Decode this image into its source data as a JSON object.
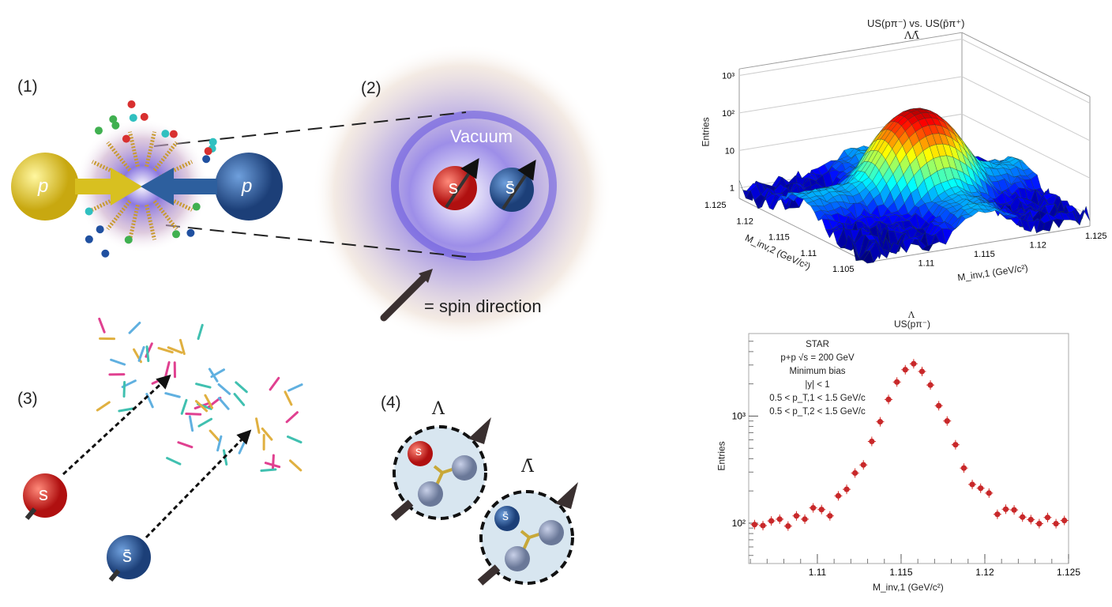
{
  "panels": {
    "p1": {
      "label": "(1)",
      "proton_left": "p",
      "proton_right": "p"
    },
    "p2": {
      "label": "(2)",
      "vacuum": "Vacuum",
      "quark": "s",
      "antiquark": "s̄",
      "legend": "= spin direction"
    },
    "p3": {
      "label": "(3)",
      "quark": "s",
      "antiquark": "s̄"
    },
    "p4": {
      "label": "(4)",
      "lambda": "Λ",
      "antilambda": "Λ̄",
      "quark": "s",
      "antiquark": "s̄"
    }
  },
  "colors": {
    "quark_s": "#d8282a",
    "antiquark_s": "#2f6fb0",
    "proton_yellow": "#e8d23a",
    "proton_blue": "#2d5f9e",
    "marker": "#d42a22",
    "glow": "#8a7ad8"
  },
  "chart_data": [
    {
      "type": "surface",
      "title_top": "ΛΛ̄",
      "title": "US(pπ⁻) vs. US(p̄π⁺)",
      "xlabel": "M_inv,1 (GeV/c²)",
      "ylabel": "M_inv,2 (GeV/c²)",
      "zlabel": "Entries",
      "zscale": "log",
      "xticks": [
        "1.11",
        "1.115",
        "1.12",
        "1.125"
      ],
      "yticks": [
        "1.105",
        "1.11",
        "1.115",
        "1.12",
        "1.125"
      ],
      "zticks": [
        "1",
        "10",
        "10²",
        "10³"
      ],
      "xlim": [
        1.105,
        1.125
      ],
      "ylim": [
        1.105,
        1.125
      ],
      "colormap": "jet"
    },
    {
      "type": "scatter",
      "title_top": "Λ",
      "title": "US(pπ⁻)",
      "xlabel": "M_inv,1 (GeV/c²)",
      "ylabel": "Entries",
      "yscale": "log",
      "xlim": [
        1.1059,
        1.125
      ],
      "ylim": [
        42,
        5900
      ],
      "xticks": [
        "1.11",
        "1.115",
        "1.12",
        "1.125"
      ],
      "yticks": [
        "10²",
        "10³"
      ],
      "annotation": [
        "STAR",
        "p+p  √s = 200 GeV",
        "Minimum bias",
        "|y| < 1",
        "0.5 < p_T,1 < 1.5 GeV/c",
        "0.5 < p_T,2 < 1.5 GeV/c"
      ],
      "x": [
        1.10625,
        1.10675,
        1.10725,
        1.10775,
        1.10825,
        1.10875,
        1.10925,
        1.10975,
        1.11025,
        1.11075,
        1.11125,
        1.11175,
        1.11225,
        1.11275,
        1.11325,
        1.11375,
        1.11425,
        1.11475,
        1.11525,
        1.11575,
        1.11625,
        1.11675,
        1.11725,
        1.11775,
        1.11825,
        1.11875,
        1.11925,
        1.11975,
        1.12025,
        1.12075,
        1.12125,
        1.12175,
        1.12225,
        1.12275,
        1.12325,
        1.12375,
        1.12425,
        1.12475
      ],
      "y": [
        97,
        95,
        105,
        109,
        94,
        117,
        109,
        139,
        134,
        117,
        180,
        207,
        294,
        350,
        580,
        885,
        1430,
        2080,
        2710,
        3080,
        2610,
        1950,
        1250,
        900,
        540,
        327,
        230,
        212,
        191,
        121,
        135,
        133,
        114,
        108,
        99,
        113,
        99,
        106
      ]
    }
  ]
}
